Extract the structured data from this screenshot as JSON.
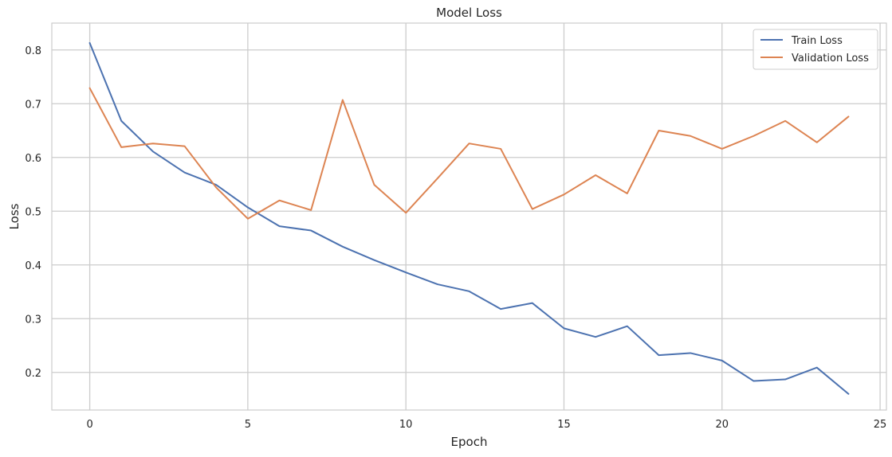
{
  "chart_data": {
    "type": "line",
    "title": "Model Loss",
    "xlabel": "Epoch",
    "ylabel": "Loss",
    "xlim": [
      -1.2,
      25.2
    ],
    "ylim": [
      0.13,
      0.85
    ],
    "xticks": [
      0,
      5,
      10,
      15,
      20,
      25
    ],
    "yticks": [
      0.2,
      0.3,
      0.4,
      0.5,
      0.6,
      0.7,
      0.8
    ],
    "grid": true,
    "legend_position": "top-right",
    "x": [
      0,
      1,
      2,
      3,
      4,
      5,
      6,
      7,
      8,
      9,
      10,
      11,
      12,
      13,
      14,
      15,
      16,
      17,
      18,
      19,
      20,
      21,
      22,
      23,
      24
    ],
    "series": [
      {
        "name": "Train Loss",
        "color": "#4c72b0",
        "values": [
          0.813,
          0.668,
          0.611,
          0.572,
          0.549,
          0.507,
          0.472,
          0.464,
          0.434,
          0.409,
          0.386,
          0.364,
          0.351,
          0.318,
          0.329,
          0.282,
          0.266,
          0.286,
          0.232,
          0.236,
          0.222,
          0.184,
          0.187,
          0.209,
          0.16
        ]
      },
      {
        "name": "Validation Loss",
        "color": "#dd8452",
        "values": [
          0.729,
          0.619,
          0.626,
          0.621,
          0.544,
          0.486,
          0.52,
          0.502,
          0.707,
          0.549,
          0.497,
          0.561,
          0.626,
          0.616,
          0.504,
          0.531,
          0.567,
          0.533,
          0.65,
          0.64,
          0.616,
          0.64,
          0.668,
          0.628,
          0.676
        ]
      }
    ]
  }
}
